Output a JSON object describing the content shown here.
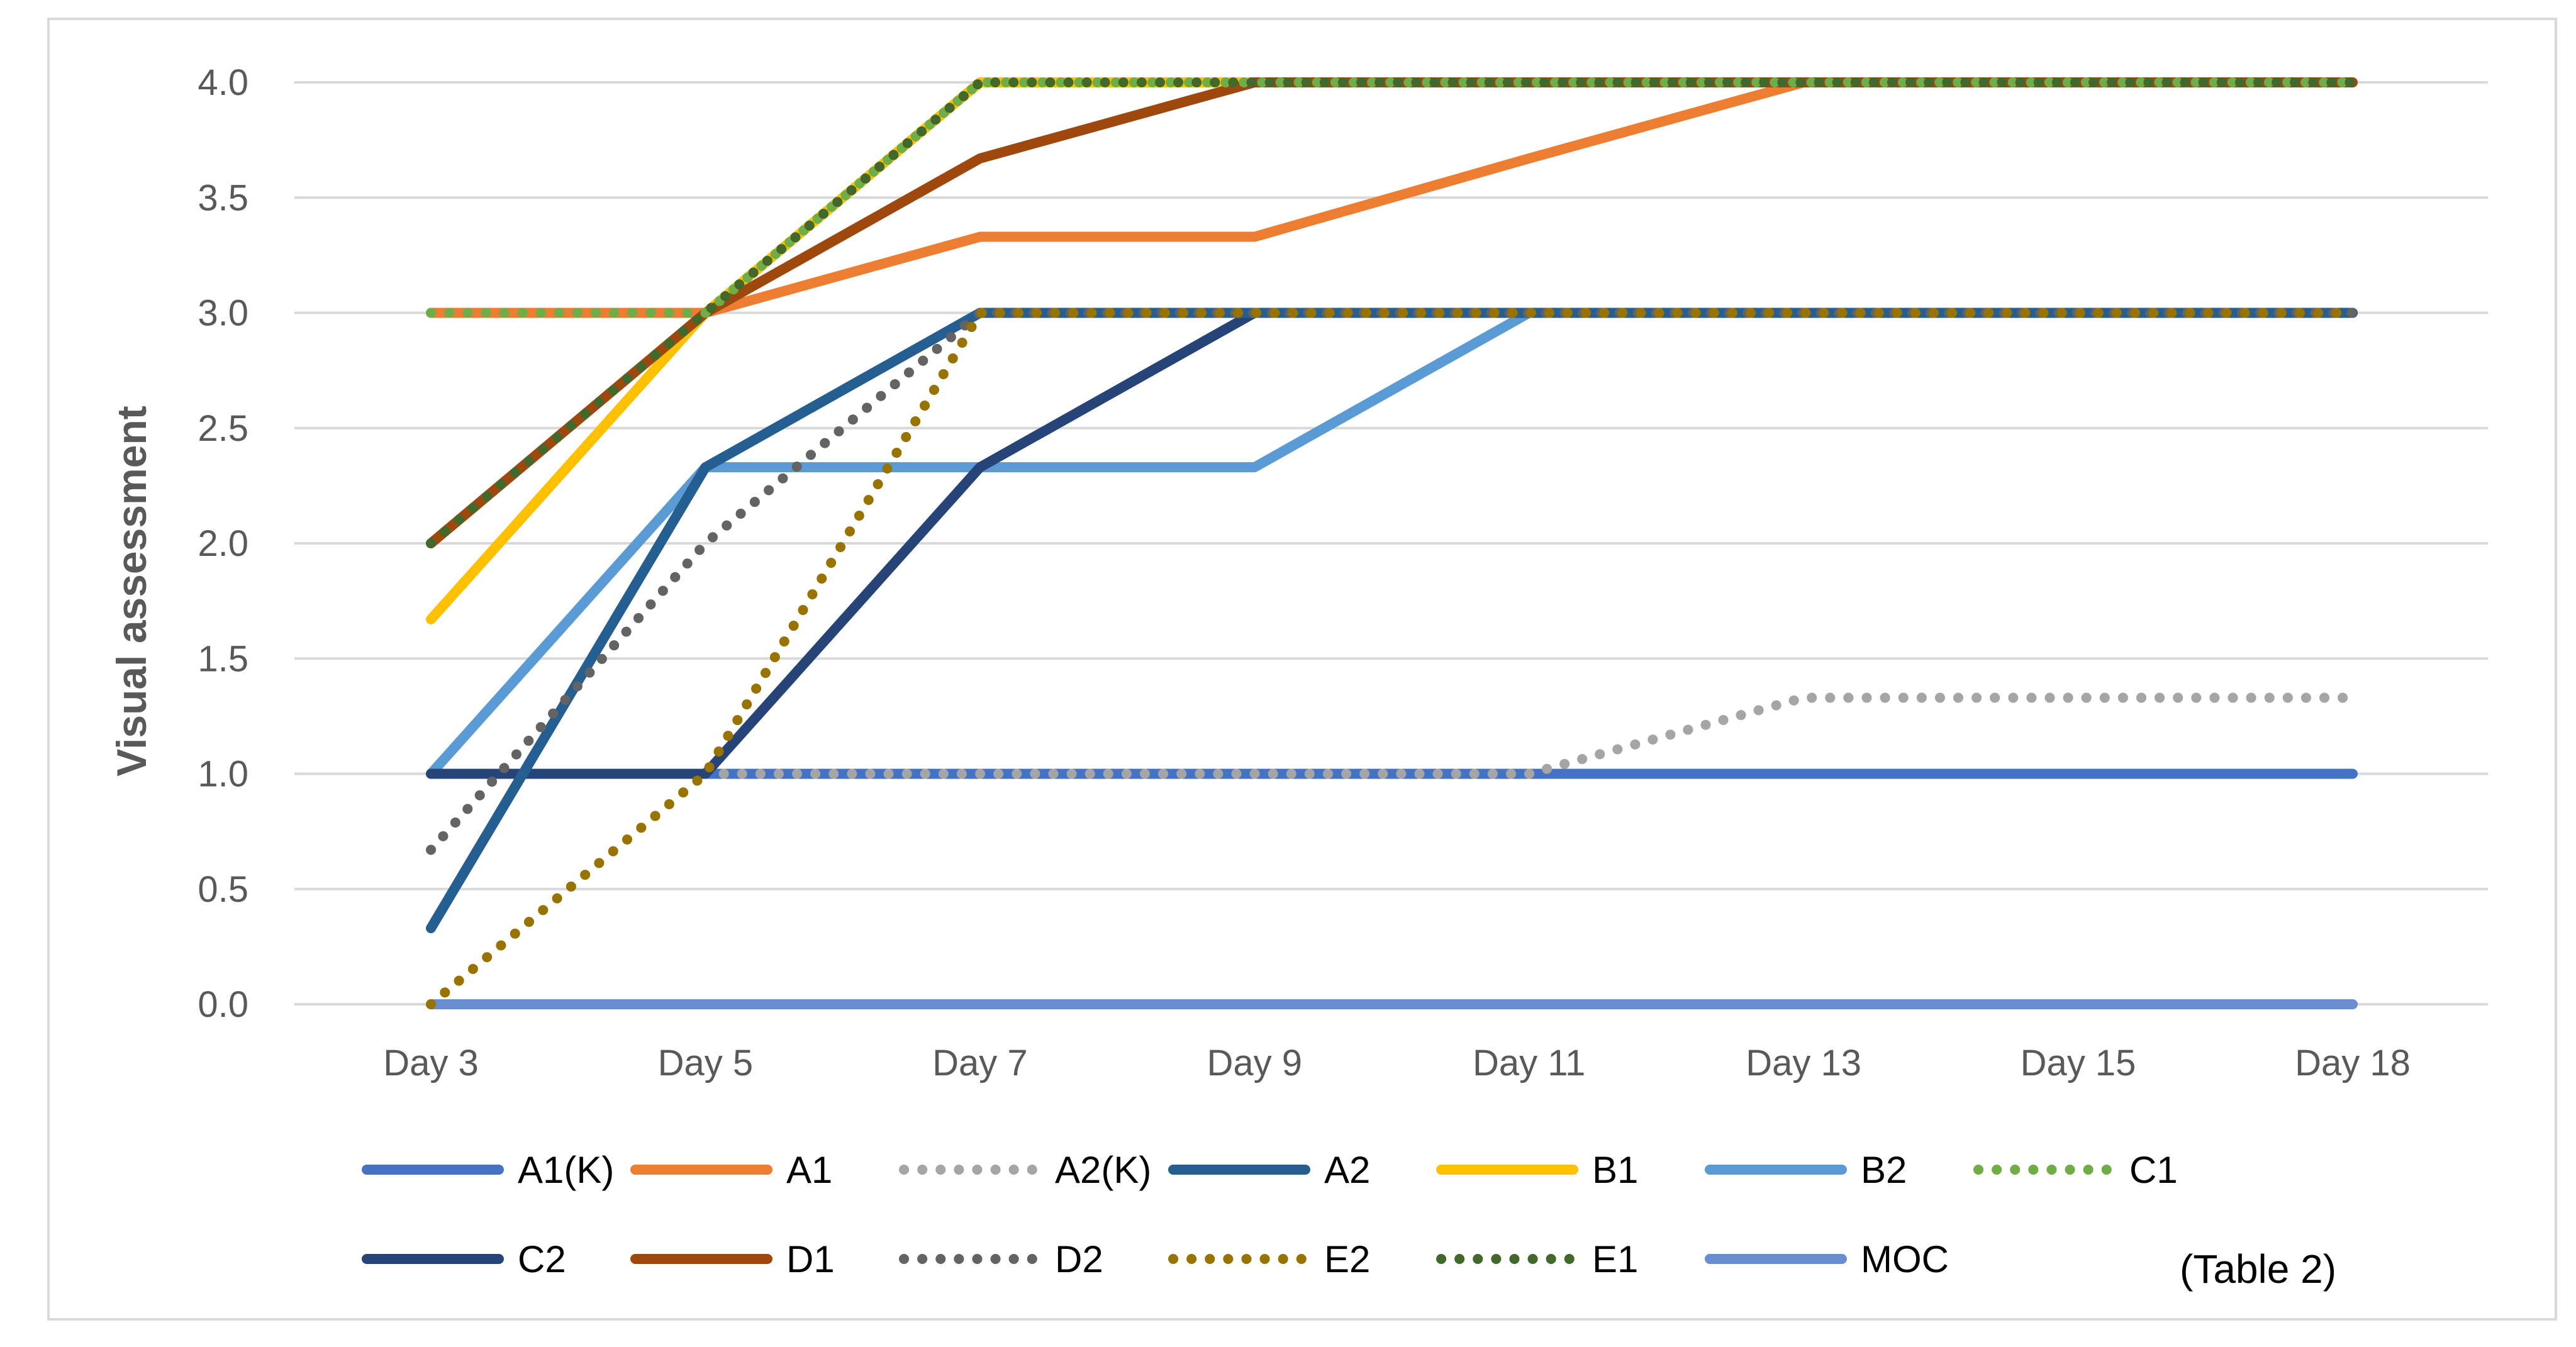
{
  "chart_data": {
    "type": "line",
    "title": "",
    "xlabel": "",
    "ylabel": "Visual assessment",
    "ylim": [
      0,
      4
    ],
    "yticks": [
      "0.0",
      "0.5",
      "1.0",
      "1.5",
      "2.0",
      "2.5",
      "3.0",
      "3.5",
      "4.0"
    ],
    "categories": [
      "Day 3",
      "Day 5",
      "Day 7",
      "Day 9",
      "Day 11",
      "Day 13",
      "Day 15",
      "Day 18"
    ],
    "grid": true,
    "legend_position": "bottom",
    "annotation": "(Table 2)",
    "series": [
      {
        "name": "A1(K)",
        "color": "#4472c4",
        "dash": "solid",
        "values": [
          1,
          1,
          1,
          1,
          1,
          1,
          1,
          1
        ]
      },
      {
        "name": "A1",
        "color": "#ed7d31",
        "dash": "solid",
        "values": [
          3,
          3,
          3.33,
          3.33,
          3.67,
          4,
          4,
          4
        ]
      },
      {
        "name": "A2(K)",
        "color": "#a5a5a5",
        "dash": "dot",
        "values": [
          1,
          1,
          1,
          1,
          1,
          1.33,
          1.33,
          1.33
        ]
      },
      {
        "name": "A2",
        "color": "#255e91",
        "dash": "solid",
        "values": [
          0.33,
          2.33,
          3,
          3,
          3,
          3,
          3,
          3
        ]
      },
      {
        "name": "B1",
        "color": "#ffc000",
        "dash": "solid",
        "values": [
          1.67,
          3,
          4,
          4,
          4,
          4,
          4,
          4
        ]
      },
      {
        "name": "B2",
        "color": "#5b9bd5",
        "dash": "solid",
        "values": [
          1,
          2.33,
          2.33,
          2.33,
          3,
          3,
          3,
          3
        ]
      },
      {
        "name": "C1",
        "color": "#70ad47",
        "dash": "dot",
        "values": [
          3,
          3,
          4,
          4,
          4,
          4,
          4,
          4
        ]
      },
      {
        "name": "C2",
        "color": "#264478",
        "dash": "solid",
        "values": [
          1,
          1,
          2.33,
          3,
          3,
          3,
          3,
          3
        ]
      },
      {
        "name": "D1",
        "color": "#9e480e",
        "dash": "solid",
        "values": [
          2,
          3,
          3.67,
          4,
          4,
          4,
          4,
          4
        ]
      },
      {
        "name": "D2",
        "color": "#636363",
        "dash": "dot",
        "values": [
          0.67,
          2,
          3,
          3,
          3,
          3,
          3,
          3
        ]
      },
      {
        "name": "E2",
        "color": "#997300",
        "dash": "dot",
        "values": [
          0,
          1,
          3,
          3,
          3,
          3,
          3,
          3
        ]
      },
      {
        "name": "E1",
        "color": "#43682b",
        "dash": "dot",
        "values": [
          2,
          3,
          4,
          4,
          4,
          4,
          4,
          4
        ]
      },
      {
        "name": "MOC",
        "color": "#698ed0",
        "dash": "solid",
        "values": [
          0,
          0,
          0,
          0,
          0,
          0,
          0,
          0
        ]
      }
    ]
  }
}
